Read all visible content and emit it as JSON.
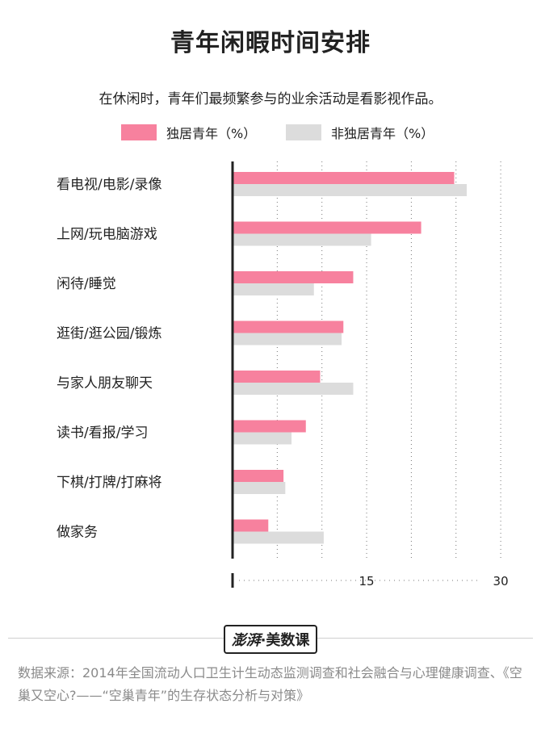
{
  "title": "青年闲暇时间安排",
  "subtitle": "在休闲时，青年们最频繁参与的业余活动是看影视作品。",
  "legend": [
    {
      "label": "独居青年（%）",
      "color": "#f7819e"
    },
    {
      "label": "非独居青年（%）",
      "color": "#dcdcdc"
    }
  ],
  "chart_data": {
    "type": "bar",
    "orientation": "horizontal",
    "categories": [
      "看电视/电影/录像",
      "上网/玩电脑游戏",
      "闲待/睡觉",
      "逛街/逛公园/锻炼",
      "与家人朋友聊天",
      "读书/看报/学习",
      "下棋/打牌/打麻将",
      "做家务"
    ],
    "series": [
      {
        "name": "独居青年（%）",
        "color": "#f7819e",
        "values": [
          24.8,
          21.1,
          13.5,
          12.4,
          9.8,
          8.2,
          5.7,
          4.0
        ]
      },
      {
        "name": "非独居青年（%）",
        "color": "#dcdcdc",
        "values": [
          26.2,
          15.5,
          9.1,
          12.2,
          13.5,
          6.6,
          5.9,
          10.2
        ]
      }
    ],
    "xlim": [
      0,
      30
    ],
    "xticks": [
      15,
      30
    ],
    "xticks_labels": [
      "15",
      "30"
    ],
    "grid": "vertical-dotted",
    "legend_position": "top"
  },
  "brand": {
    "logo": "澎湃",
    "separator": "·",
    "name": "美数课"
  },
  "source": "数据来源：2014年全国流动人口卫生计生动态监测调查和社会融合与心理健康调查、《空巢又空心?——“空巢青年”的生存状态分析与对策》"
}
